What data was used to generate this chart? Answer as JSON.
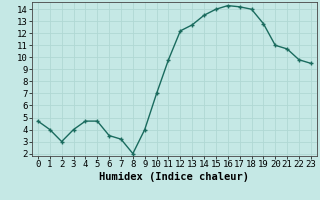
{
  "x": [
    0,
    1,
    2,
    3,
    4,
    5,
    6,
    7,
    8,
    9,
    10,
    11,
    12,
    13,
    14,
    15,
    16,
    17,
    18,
    19,
    20,
    21,
    22,
    23
  ],
  "y": [
    4.7,
    4.0,
    3.0,
    4.0,
    4.7,
    4.7,
    3.5,
    3.2,
    2.0,
    4.0,
    7.0,
    9.8,
    12.2,
    12.7,
    13.5,
    14.0,
    14.3,
    14.2,
    14.0,
    12.8,
    11.0,
    10.7,
    9.8,
    9.5
  ],
  "xlabel": "Humidex (Indice chaleur)",
  "ylim": [
    1.8,
    14.6
  ],
  "xlim": [
    -0.5,
    23.5
  ],
  "yticks": [
    2,
    3,
    4,
    5,
    6,
    7,
    8,
    9,
    10,
    11,
    12,
    13,
    14
  ],
  "xticks": [
    0,
    1,
    2,
    3,
    4,
    5,
    6,
    7,
    8,
    9,
    10,
    11,
    12,
    13,
    14,
    15,
    16,
    17,
    18,
    19,
    20,
    21,
    22,
    23
  ],
  "line_color": "#1a6b5e",
  "marker_color": "#1a6b5e",
  "bg_color": "#c5e8e5",
  "grid_color": "#b0d8d4",
  "tick_label_fontsize": 6.5,
  "xlabel_fontsize": 7.5
}
